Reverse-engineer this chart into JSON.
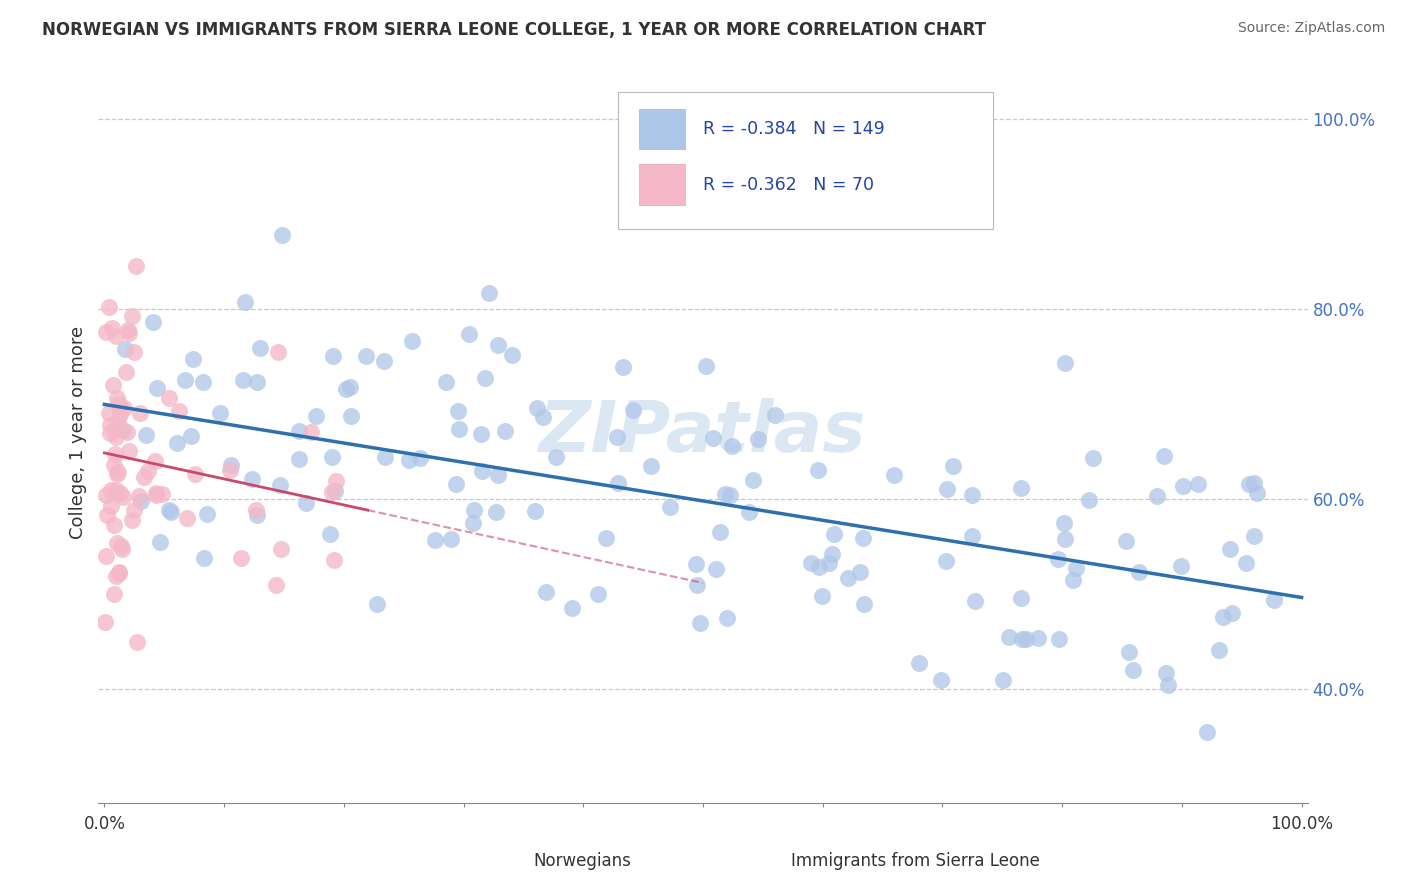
{
  "title": "NORWEGIAN VS IMMIGRANTS FROM SIERRA LEONE COLLEGE, 1 YEAR OR MORE CORRELATION CHART",
  "source": "Source: ZipAtlas.com",
  "ylabel": "College, 1 year or more",
  "watermark": "ZIPatlas",
  "legend_box": {
    "norwegian": {
      "R": -0.384,
      "N": 149,
      "color": "#aec6e8",
      "line_color": "#2e6fad"
    },
    "sierra_leone": {
      "R": -0.362,
      "N": 70,
      "color": "#f4b8c8",
      "line_color": "#c9496b"
    }
  },
  "yticks_right": [
    "40.0%",
    "60.0%",
    "80.0%",
    "100.0%"
  ],
  "ytick_vals": [
    0.4,
    0.6,
    0.8,
    1.0
  ],
  "xlim": [
    -0.005,
    1.005
  ],
  "ylim": [
    0.28,
    1.06
  ],
  "background_color": "#ffffff",
  "grid_color": "#c8c8c8",
  "xtick_positions": [
    0.0,
    0.1,
    0.2,
    0.3,
    0.4,
    0.5,
    0.6,
    0.7,
    0.8,
    0.9,
    1.0
  ],
  "nor_color": "#aec6e8",
  "nor_line_color": "#2e6fad",
  "sl_color": "#f4b8c8",
  "sl_line_color": "#c9496b",
  "nor_R": -0.384,
  "nor_N": 149,
  "sl_R": -0.362,
  "sl_N": 70,
  "watermark_color": "#c5d8ee",
  "watermark_alpha": 0.6,
  "title_color": "#333333",
  "source_color": "#666666",
  "axis_label_color": "#333333",
  "right_tick_color": "#4472c4"
}
